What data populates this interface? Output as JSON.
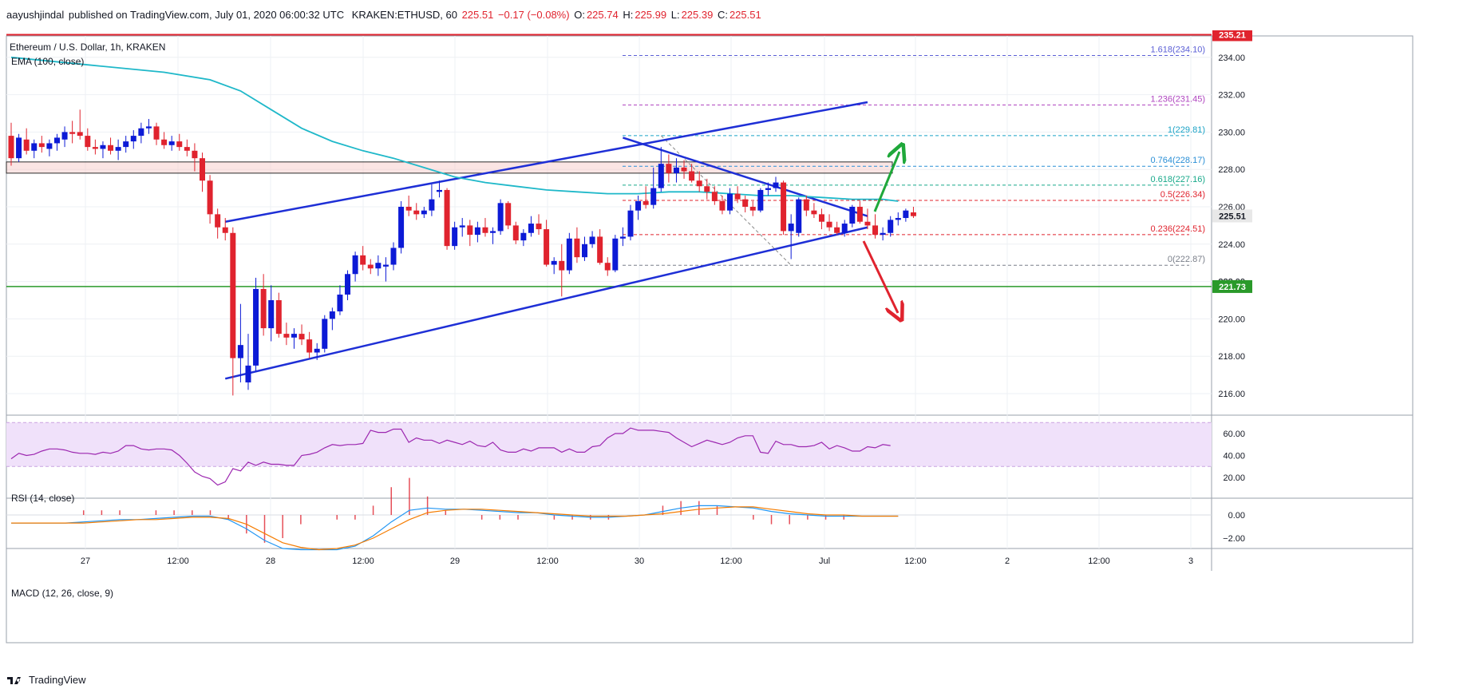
{
  "header": {
    "author": "aayushjindal",
    "published_text": "published on TradingView.com, July 01, 2020 06:00:32 UTC",
    "symbol": "KRAKEN:ETHUSD, 60",
    "price": "225.51",
    "change": "−0.17 (−0.08%)",
    "o_label": "O:",
    "o_val": "225.74",
    "h_label": "H:",
    "h_val": "225.99",
    "l_label": "L:",
    "l_val": "225.39",
    "c_label": "C:",
    "c_val": "225.51"
  },
  "footer": {
    "brand": "TradingView"
  },
  "colors": {
    "up": "#0c1ad6",
    "down": "#e0232e",
    "ema": "#1fb8c9",
    "trend": "#1e2fd6",
    "resistance": "#e0232e",
    "support": "#2a9a2a",
    "rsi": "#9c27b0",
    "macd": "#2196f3",
    "signal": "#f57c00",
    "arrow_up": "#1fa83a",
    "arrow_down": "#e0232e"
  },
  "chart_data": [
    {
      "type": "candlestick",
      "title": "Ethereum / U.S. Dollar, 1h, KRAKEN",
      "indicator_label": "EMA (100, close)",
      "ylim": [
        215,
        236.4
      ],
      "y_ticks": [
        "216.00",
        "218.00",
        "220.00",
        "222.00",
        "224.00",
        "226.00",
        "228.00",
        "230.00",
        "232.00",
        "234.00"
      ],
      "x_ticks": [
        "27",
        "12:00",
        "28",
        "12:00",
        "29",
        "12:00",
        "30",
        "12:00",
        "Jul",
        "12:00",
        "2",
        "12:00",
        "3"
      ],
      "candles_ohlc": [
        [
          229.8,
          230.5,
          228.2,
          228.6
        ],
        [
          228.6,
          229.9,
          228.4,
          229.7
        ],
        [
          229.6,
          230.2,
          228.8,
          229.0
        ],
        [
          229.0,
          229.6,
          228.6,
          229.4
        ],
        [
          229.4,
          229.8,
          228.9,
          229.2
        ],
        [
          229.1,
          229.6,
          228.7,
          229.4
        ],
        [
          229.4,
          229.9,
          229.0,
          229.7
        ],
        [
          229.6,
          230.3,
          229.2,
          230.0
        ],
        [
          230.0,
          230.6,
          229.4,
          229.9
        ],
        [
          230.0,
          231.2,
          229.6,
          229.8
        ],
        [
          229.8,
          230.2,
          229.0,
          229.2
        ],
        [
          229.2,
          229.6,
          228.8,
          229.1
        ],
        [
          229.1,
          229.5,
          228.6,
          229.3
        ],
        [
          229.3,
          229.7,
          228.8,
          229.0
        ],
        [
          229.0,
          229.6,
          228.5,
          229.2
        ],
        [
          229.2,
          229.8,
          228.9,
          229.5
        ],
        [
          229.5,
          230.1,
          229.1,
          229.8
        ],
        [
          229.8,
          230.5,
          229.4,
          230.2
        ],
        [
          230.2,
          230.7,
          229.9,
          230.3
        ],
        [
          230.3,
          230.5,
          229.3,
          229.6
        ],
        [
          229.6,
          230.0,
          229.1,
          229.3
        ],
        [
          229.3,
          229.8,
          229.0,
          229.5
        ],
        [
          229.5,
          229.9,
          229.0,
          229.2
        ],
        [
          229.2,
          229.6,
          228.7,
          229.0
        ],
        [
          229.0,
          229.4,
          227.9,
          228.6
        ],
        [
          228.6,
          228.9,
          226.8,
          227.4
        ],
        [
          227.4,
          227.7,
          225.1,
          225.6
        ],
        [
          225.6,
          225.9,
          224.3,
          224.9
        ],
        [
          224.9,
          225.4,
          224.2,
          224.6
        ],
        [
          224.6,
          224.9,
          215.9,
          217.9
        ],
        [
          217.9,
          220.8,
          216.6,
          218.6
        ],
        [
          216.6,
          219.2,
          216.2,
          217.5
        ],
        [
          217.5,
          222.2,
          217.2,
          221.6
        ],
        [
          221.6,
          222.4,
          219.1,
          219.5
        ],
        [
          219.5,
          221.8,
          218.8,
          221.0
        ],
        [
          221.0,
          221.4,
          219.0,
          219.2
        ],
        [
          219.2,
          219.8,
          218.6,
          219.0
        ],
        [
          219.0,
          219.5,
          218.4,
          219.2
        ],
        [
          219.2,
          219.7,
          218.6,
          218.9
        ],
        [
          218.9,
          219.3,
          217.9,
          218.2
        ],
        [
          218.2,
          218.7,
          217.8,
          218.4
        ],
        [
          218.4,
          220.2,
          218.2,
          220.0
        ],
        [
          220.0,
          220.6,
          219.4,
          220.4
        ],
        [
          220.4,
          221.8,
          220.2,
          221.3
        ],
        [
          221.3,
          222.6,
          221.0,
          222.4
        ],
        [
          222.4,
          223.6,
          222.0,
          223.4
        ],
        [
          223.4,
          223.9,
          222.6,
          222.9
        ],
        [
          222.9,
          223.2,
          222.4,
          222.7
        ],
        [
          222.7,
          223.4,
          222.3,
          223.0
        ],
        [
          222.8,
          223.3,
          222.0,
          222.9
        ],
        [
          222.9,
          224.1,
          222.6,
          223.8
        ],
        [
          223.8,
          226.3,
          223.5,
          226.0
        ],
        [
          226.0,
          226.6,
          225.5,
          225.8
        ],
        [
          225.8,
          226.2,
          225.3,
          225.6
        ],
        [
          225.6,
          226.0,
          225.4,
          225.8
        ],
        [
          225.8,
          227.2,
          225.5,
          226.4
        ],
        [
          226.8,
          227.4,
          226.5,
          226.9
        ],
        [
          226.9,
          227.0,
          223.7,
          223.9
        ],
        [
          223.9,
          225.2,
          223.7,
          224.9
        ],
        [
          224.9,
          225.4,
          224.4,
          225.0
        ],
        [
          225.0,
          225.3,
          223.9,
          224.5
        ],
        [
          224.5,
          225.2,
          224.1,
          224.9
        ],
        [
          224.9,
          225.4,
          224.4,
          224.6
        ],
        [
          224.6,
          224.9,
          224.0,
          224.7
        ],
        [
          224.7,
          226.4,
          224.5,
          226.2
        ],
        [
          226.2,
          226.3,
          224.8,
          225.0
        ],
        [
          225.0,
          225.2,
          224.0,
          224.2
        ],
        [
          224.2,
          224.8,
          223.9,
          224.6
        ],
        [
          224.6,
          225.5,
          224.4,
          225.1
        ],
        [
          225.1,
          225.6,
          224.5,
          224.8
        ],
        [
          224.8,
          225.3,
          222.8,
          222.9
        ],
        [
          222.9,
          223.3,
          222.4,
          223.1
        ],
        [
          223.1,
          224.0,
          221.2,
          222.6
        ],
        [
          222.6,
          224.6,
          222.4,
          224.3
        ],
        [
          224.3,
          224.9,
          223.0,
          223.3
        ],
        [
          223.3,
          224.4,
          223.1,
          224.0
        ],
        [
          224.0,
          224.7,
          223.8,
          224.4
        ],
        [
          224.4,
          224.8,
          222.9,
          223.0
        ],
        [
          223.0,
          223.3,
          222.3,
          222.6
        ],
        [
          222.6,
          224.5,
          222.5,
          224.3
        ],
        [
          224.3,
          224.9,
          223.9,
          224.4
        ],
        [
          224.4,
          226.1,
          224.2,
          225.8
        ],
        [
          225.8,
          226.6,
          225.3,
          226.3
        ],
        [
          226.3,
          227.1,
          225.9,
          226.1
        ],
        [
          226.1,
          228.1,
          225.9,
          227.0
        ],
        [
          227.0,
          229.2,
          226.8,
          228.3
        ],
        [
          228.3,
          228.8,
          227.3,
          227.8
        ],
        [
          227.8,
          228.6,
          227.3,
          228.1
        ],
        [
          228.1,
          228.5,
          227.5,
          227.9
        ],
        [
          227.9,
          228.3,
          227.3,
          227.4
        ],
        [
          227.4,
          227.9,
          226.8,
          227.1
        ],
        [
          227.1,
          227.5,
          226.4,
          226.8
        ],
        [
          226.8,
          227.1,
          226.1,
          226.3
        ],
        [
          226.3,
          226.6,
          225.6,
          225.8
        ],
        [
          225.8,
          227.0,
          225.6,
          226.7
        ],
        [
          226.7,
          227.1,
          226.2,
          226.4
        ],
        [
          226.4,
          226.6,
          225.7,
          226.0
        ],
        [
          226.0,
          226.3,
          225.5,
          225.8
        ],
        [
          225.8,
          227.0,
          225.7,
          226.9
        ],
        [
          226.9,
          227.3,
          226.6,
          227.0
        ],
        [
          227.0,
          227.6,
          226.8,
          227.3
        ],
        [
          227.3,
          227.4,
          224.5,
          224.7
        ],
        [
          224.7,
          225.6,
          223.2,
          225.1
        ],
        [
          224.6,
          226.5,
          224.4,
          226.4
        ],
        [
          226.4,
          226.6,
          225.5,
          225.8
        ],
        [
          225.8,
          226.2,
          225.4,
          225.6
        ],
        [
          225.6,
          225.9,
          224.8,
          225.2
        ],
        [
          225.2,
          225.6,
          224.7,
          224.9
        ],
        [
          224.9,
          225.2,
          224.5,
          224.6
        ],
        [
          224.6,
          225.3,
          224.4,
          225.1
        ],
        [
          225.1,
          226.1,
          224.9,
          226.0
        ],
        [
          226.0,
          226.3,
          225.1,
          225.2
        ],
        [
          225.2,
          225.9,
          224.8,
          225.0
        ],
        [
          225.0,
          225.6,
          224.3,
          224.5
        ],
        [
          224.5,
          224.9,
          224.2,
          224.6
        ],
        [
          224.6,
          225.5,
          224.4,
          225.3
        ],
        [
          225.3,
          225.7,
          225.0,
          225.4
        ],
        [
          225.4,
          225.9,
          225.2,
          225.8
        ],
        [
          225.7,
          226.0,
          225.4,
          225.5
        ]
      ],
      "ema_points": [
        [
          0,
          234.0
        ],
        [
          10,
          233.6
        ],
        [
          20,
          233.2
        ],
        [
          26,
          232.8
        ],
        [
          30,
          232.2
        ],
        [
          34,
          231.2
        ],
        [
          38,
          230.2
        ],
        [
          42,
          229.5
        ],
        [
          46,
          229.0
        ],
        [
          50,
          228.6
        ],
        [
          54,
          228.1
        ],
        [
          58,
          227.6
        ],
        [
          62,
          227.3
        ],
        [
          66,
          227.1
        ],
        [
          70,
          226.9
        ],
        [
          74,
          226.8
        ],
        [
          78,
          226.7
        ],
        [
          82,
          226.7
        ],
        [
          86,
          226.8
        ],
        [
          90,
          226.8
        ],
        [
          94,
          226.7
        ],
        [
          98,
          226.6
        ],
        [
          102,
          226.6
        ],
        [
          106,
          226.5
        ],
        [
          110,
          226.4
        ],
        [
          114,
          226.4
        ],
        [
          116,
          226.3
        ]
      ],
      "annotations": {
        "resistance_level": {
          "value": 235.21,
          "label": "235.21"
        },
        "support_level": {
          "value": 221.73,
          "label": "221.73"
        },
        "last_price": {
          "value": 225.51,
          "label": "225.51"
        },
        "hidden_label": {
          "value": 222.0,
          "label": "222.00"
        },
        "zone": [
          227.8,
          228.4
        ],
        "fibonacci": [
          {
            "ratio": "1.618",
            "value": 234.1,
            "label": "1.618(234.10)",
            "color": "#5b5fd6"
          },
          {
            "ratio": "1.236",
            "value": 231.45,
            "label": "1.236(231.45)",
            "color": "#b046c0"
          },
          {
            "ratio": "1",
            "value": 229.81,
            "label": "1(229.81)",
            "color": "#1ba3c6"
          },
          {
            "ratio": "0.764",
            "value": 228.17,
            "label": "0.764(228.17)",
            "color": "#2a8fd6"
          },
          {
            "ratio": "0.618",
            "value": 227.16,
            "label": "0.618(227.16)",
            "color": "#17a98a"
          },
          {
            "ratio": "0.5",
            "value": 226.34,
            "label": "0.5(226.34)",
            "color": "#e0232e"
          },
          {
            "ratio": "0.236",
            "value": 224.51,
            "label": "0.236(224.51)",
            "color": "#e0232e"
          },
          {
            "ratio": "0",
            "value": 222.87,
            "label": "0(222.87)",
            "color": "#7a7f8a"
          }
        ]
      }
    },
    {
      "type": "line",
      "title": "RSI (14, close)",
      "ylim": [
        10,
        70
      ],
      "y_ticks": [
        "20.00",
        "40.00",
        "60.00"
      ],
      "band": [
        30,
        70
      ],
      "values": [
        37,
        42,
        40,
        41,
        44,
        46,
        46,
        45,
        43,
        42,
        42,
        41,
        43,
        42,
        44,
        49,
        49,
        46,
        45,
        46,
        46,
        45,
        40,
        33,
        25,
        21,
        19,
        13,
        16,
        28,
        26,
        34,
        31,
        34,
        32,
        32,
        31,
        31,
        40,
        41,
        43,
        47,
        50,
        49,
        50,
        50,
        51,
        63,
        61,
        61,
        64,
        64,
        52,
        56,
        54,
        54,
        51,
        54,
        52,
        50,
        53,
        49,
        48,
        52,
        45,
        43,
        43,
        46,
        44,
        47,
        47,
        47,
        43,
        46,
        43,
        43,
        48,
        49,
        56,
        60,
        60,
        65,
        63,
        63,
        63,
        62,
        61,
        56,
        52,
        48,
        51,
        54,
        52,
        50,
        52,
        56,
        58,
        58,
        43,
        42,
        53,
        50,
        50,
        48,
        48,
        49,
        52,
        46,
        49,
        47,
        44,
        44,
        48,
        47,
        50,
        49
      ]
    },
    {
      "type": "line",
      "title": "MACD (12, 26, close, 9)",
      "ylim": [
        -3.7,
        1.5
      ],
      "y_ticks": [
        "0.00",
        "−2.00"
      ],
      "macd": [
        -0.7,
        -0.7,
        -0.7,
        -0.7,
        -0.6,
        -0.5,
        -0.4,
        -0.4,
        -0.3,
        -0.2,
        -0.1,
        -0.1,
        -0.4,
        -1.2,
        -2.2,
        -2.9,
        -3.0,
        -3.0,
        -3.0,
        -2.7,
        -1.8,
        -0.6,
        0.4,
        0.6,
        0.5,
        0.5,
        0.4,
        0.3,
        0.2,
        0.2,
        0.0,
        -0.1,
        -0.2,
        -0.2,
        -0.1,
        0.0,
        0.3,
        0.6,
        0.8,
        0.8,
        0.7,
        0.6,
        0.3,
        0.1,
        0.0,
        -0.1,
        -0.1,
        -0.1,
        -0.1,
        -0.1
      ],
      "signal": [
        -0.7,
        -0.7,
        -0.7,
        -0.7,
        -0.7,
        -0.6,
        -0.5,
        -0.4,
        -0.4,
        -0.3,
        -0.2,
        -0.2,
        -0.3,
        -0.8,
        -1.6,
        -2.4,
        -2.8,
        -3.0,
        -2.9,
        -2.6,
        -2.0,
        -1.2,
        -0.4,
        0.2,
        0.4,
        0.5,
        0.5,
        0.4,
        0.3,
        0.2,
        0.1,
        0.0,
        -0.1,
        -0.1,
        -0.1,
        0.0,
        0.1,
        0.3,
        0.5,
        0.6,
        0.7,
        0.7,
        0.5,
        0.3,
        0.1,
        0.0,
        0.0,
        -0.1,
        -0.1,
        -0.1
      ]
    }
  ]
}
